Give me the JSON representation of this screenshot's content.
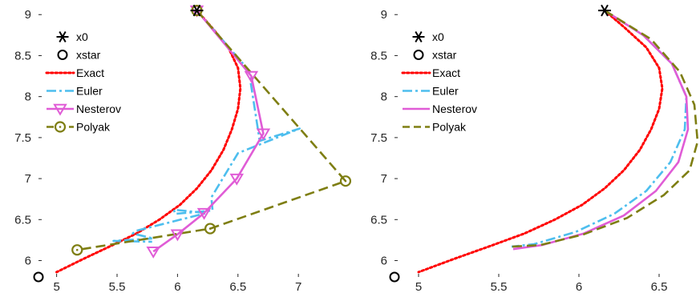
{
  "chart_data": [
    {
      "type": "line",
      "title": "",
      "xlabel": "",
      "ylabel": "",
      "xlim": [
        4.85,
        7.45
      ],
      "ylim": [
        5.8,
        9.1
      ],
      "xticks": [
        "5",
        "5.5",
        "6",
        "6.5",
        "7"
      ],
      "xtick_values": [
        5,
        5.5,
        6,
        6.5,
        7
      ],
      "yticks": [
        "6",
        "6.5",
        "7",
        "7.5",
        "8",
        "8.5",
        "9"
      ],
      "ytick_values": [
        6,
        6.5,
        7,
        7.5,
        8,
        8.5,
        9
      ],
      "grid": false,
      "legend_position": "top-left",
      "x0": [
        6.16,
        9.05
      ],
      "xstar": [
        4.85,
        5.8
      ],
      "series": [
        {
          "name": "Exact",
          "color": "#ff0000",
          "style": "dotted",
          "x": [
            6.16,
            6.28,
            6.42,
            6.5,
            6.52,
            6.5,
            6.45,
            6.38,
            6.28,
            6.16,
            6.02,
            5.85,
            5.66,
            5.45,
            5.22,
            5.0
          ],
          "y": [
            9.05,
            8.85,
            8.6,
            8.35,
            8.1,
            7.85,
            7.6,
            7.35,
            7.1,
            6.88,
            6.68,
            6.5,
            6.33,
            6.18,
            6.02,
            5.86
          ]
        },
        {
          "name": "Euler",
          "color": "#4dbeee",
          "style": "dashdot",
          "x": [
            6.16,
            6.59,
            6.68,
            7.01,
            6.5,
            6.28,
            6.29,
            5.98,
            5.97,
            6.24,
            5.65,
            5.63,
            5.8,
            5.47,
            5.79
          ],
          "y": [
            9.05,
            8.32,
            7.46,
            7.61,
            7.31,
            6.77,
            6.61,
            6.57,
            6.62,
            6.58,
            6.36,
            6.33,
            6.27,
            6.24,
            6.23
          ]
        },
        {
          "name": "Nesterov",
          "color": "#e05cd6",
          "style": "solid",
          "markers": true,
          "x": [
            6.16,
            6.61,
            6.71,
            6.49,
            6.22,
            6.0,
            5.8
          ],
          "y": [
            9.05,
            8.25,
            7.55,
            7.0,
            6.58,
            6.32,
            6.11
          ]
        },
        {
          "name": "Polyak",
          "color": "#7e7e12",
          "style": "dashed",
          "markers": true,
          "x": [
            6.16,
            7.39,
            6.27,
            5.17
          ],
          "y": [
            9.05,
            6.97,
            6.39,
            6.13
          ]
        }
      ]
    },
    {
      "type": "line",
      "title": "",
      "xlabel": "",
      "ylabel": "",
      "xlim": [
        4.85,
        6.75
      ],
      "ylim": [
        5.8,
        9.1
      ],
      "xticks": [
        "5",
        "5.5",
        "6",
        "6.5"
      ],
      "xtick_values": [
        5,
        5.5,
        6,
        6.5
      ],
      "yticks": [
        "6",
        "6.5",
        "7",
        "7.5",
        "8",
        "8.5",
        "9"
      ],
      "ytick_values": [
        6,
        6.5,
        7,
        7.5,
        8,
        8.5,
        9
      ],
      "grid": false,
      "legend_position": "top-left",
      "x0": [
        6.16,
        9.05
      ],
      "xstar": [
        4.85,
        5.8
      ],
      "series": [
        {
          "name": "Exact",
          "color": "#ff0000",
          "style": "dotted",
          "x": [
            6.16,
            6.28,
            6.42,
            6.5,
            6.52,
            6.5,
            6.45,
            6.38,
            6.28,
            6.16,
            6.02,
            5.85,
            5.66,
            5.45,
            5.22,
            5.0
          ],
          "y": [
            9.05,
            8.85,
            8.6,
            8.35,
            8.1,
            7.85,
            7.6,
            7.35,
            7.1,
            6.88,
            6.68,
            6.5,
            6.33,
            6.18,
            6.02,
            5.86
          ]
        },
        {
          "name": "Euler",
          "color": "#4dbeee",
          "style": "dashdot",
          "x": [
            6.16,
            6.4,
            6.58,
            6.67,
            6.66,
            6.57,
            6.42,
            6.22,
            5.98,
            5.72,
            5.58
          ],
          "y": [
            9.05,
            8.75,
            8.4,
            8.0,
            7.6,
            7.2,
            6.85,
            6.57,
            6.35,
            6.2,
            6.17
          ]
        },
        {
          "name": "Nesterov",
          "color": "#e05cd6",
          "style": "solid",
          "x": [
            6.16,
            6.4,
            6.58,
            6.67,
            6.68,
            6.62,
            6.48,
            6.28,
            6.03,
            5.77,
            5.59
          ],
          "y": [
            9.05,
            8.75,
            8.4,
            8.0,
            7.6,
            7.2,
            6.85,
            6.55,
            6.33,
            6.19,
            6.14
          ]
        },
        {
          "name": "Polyak",
          "color": "#7e7e12",
          "style": "dashed",
          "x": [
            6.16,
            6.45,
            6.63,
            6.72,
            6.74,
            6.69,
            6.53,
            6.3,
            6.03,
            5.76,
            5.58
          ],
          "y": [
            9.05,
            8.7,
            8.3,
            7.9,
            7.45,
            7.1,
            6.8,
            6.52,
            6.32,
            6.19,
            6.17
          ]
        }
      ]
    }
  ]
}
